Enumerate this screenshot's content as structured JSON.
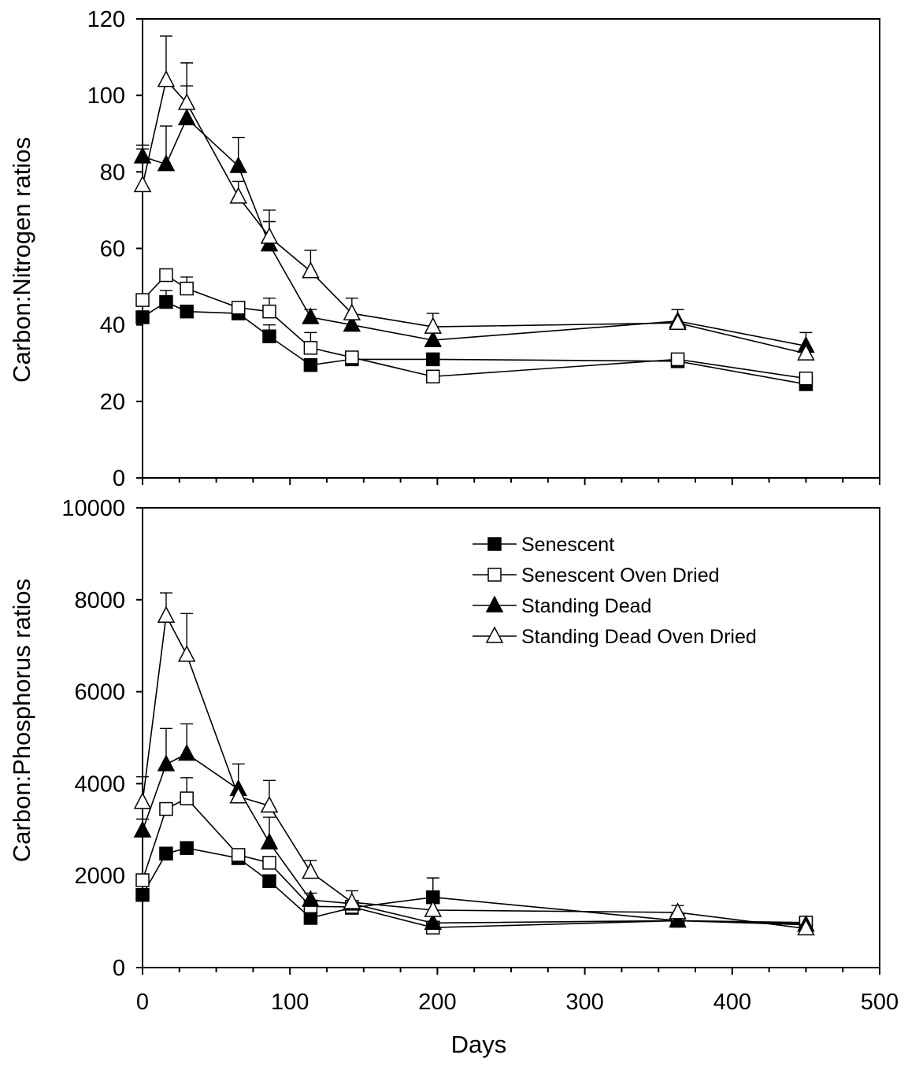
{
  "x_axis": {
    "label": "Days",
    "ticks": [
      0,
      100,
      200,
      300,
      400,
      500
    ]
  },
  "chart_data": [
    {
      "type": "line",
      "ylabel": "Carbon:Nitrogen ratios",
      "xlabel": "Days",
      "xlim": [
        0,
        500
      ],
      "ylim": [
        0,
        120
      ],
      "yticks": [
        0,
        20,
        40,
        60,
        80,
        100,
        120
      ],
      "legend": false,
      "series": [
        {
          "key": "senescent",
          "x": [
            0,
            16,
            30,
            65,
            86,
            114,
            142,
            197,
            363,
            450
          ],
          "values": [
            42,
            46,
            43.5,
            43,
            37,
            29.5,
            31,
            31,
            30.5,
            24.5
          ],
          "errors": [
            0,
            3,
            0,
            0,
            3,
            0,
            2,
            0,
            1.5,
            1
          ]
        },
        {
          "key": "senescent_oven_dried",
          "x": [
            0,
            16,
            30,
            65,
            86,
            114,
            142,
            197,
            363,
            450
          ],
          "values": [
            46.5,
            53,
            49.5,
            44.5,
            43.5,
            34,
            31.5,
            26.5,
            31,
            26
          ],
          "errors": [
            0,
            0,
            3,
            0,
            3.5,
            4,
            0,
            0,
            1,
            0
          ]
        },
        {
          "key": "standing_dead",
          "x": [
            0,
            16,
            30,
            65,
            86,
            114,
            142,
            197,
            363,
            450
          ],
          "values": [
            84,
            82,
            94,
            81.5,
            61,
            42,
            40,
            36,
            41,
            34.5
          ],
          "errors": [
            3,
            10,
            8.5,
            7.5,
            6,
            2,
            2,
            0,
            3,
            3.5
          ]
        },
        {
          "key": "standing_dead_oven_dried",
          "x": [
            0,
            16,
            30,
            65,
            86,
            114,
            142,
            197,
            363,
            450
          ],
          "values": [
            76.5,
            104,
            98,
            73.5,
            63,
            54,
            43,
            39.5,
            40.5,
            32.5
          ],
          "errors": [
            9.5,
            11.5,
            10.5,
            4,
            7,
            5.5,
            4,
            3.5,
            3.5,
            0
          ]
        }
      ]
    },
    {
      "type": "line",
      "ylabel": "Carbon:Phosphorus ratios",
      "xlabel": "Days",
      "xlim": [
        0,
        500
      ],
      "ylim": [
        0,
        10000
      ],
      "yticks": [
        0,
        2000,
        4000,
        6000,
        8000,
        10000
      ],
      "legend": true,
      "series": [
        {
          "key": "senescent",
          "name": "Senescent",
          "x": [
            0,
            16,
            30,
            65,
            86,
            114,
            142,
            197,
            363,
            450
          ],
          "values": [
            1580,
            2480,
            2600,
            2380,
            1880,
            1080,
            1300,
            1530,
            1020,
            950
          ],
          "errors": [
            0,
            0,
            0,
            0,
            0,
            0,
            0,
            420,
            0,
            0
          ]
        },
        {
          "key": "senescent_oven_dried",
          "name": "Senescent Oven Dried",
          "x": [
            0,
            16,
            30,
            65,
            86,
            114,
            142,
            197,
            363,
            450
          ],
          "values": [
            1900,
            3450,
            3680,
            2450,
            2280,
            1330,
            1320,
            870,
            1020,
            980
          ],
          "errors": [
            0,
            0,
            450,
            0,
            0,
            0,
            0,
            0,
            0,
            0
          ]
        },
        {
          "key": "standing_dead",
          "name": "Standing Dead",
          "x": [
            0,
            16,
            30,
            65,
            86,
            114,
            142,
            197,
            363,
            450
          ],
          "values": [
            2980,
            4420,
            4650,
            3880,
            2720,
            1470,
            1390,
            970,
            1020,
            930
          ],
          "errors": [
            250,
            780,
            650,
            550,
            550,
            150,
            0,
            0,
            0,
            0
          ]
        },
        {
          "key": "standing_dead_oven_dried",
          "name": "Standing Dead Oven Dried",
          "x": [
            0,
            16,
            30,
            65,
            86,
            114,
            142,
            197,
            363,
            450
          ],
          "values": [
            3600,
            7650,
            6800,
            3720,
            3520,
            2080,
            1420,
            1250,
            1200,
            850
          ],
          "errors": [
            550,
            500,
            900,
            0,
            550,
            250,
            250,
            0,
            150,
            0
          ]
        }
      ]
    }
  ]
}
